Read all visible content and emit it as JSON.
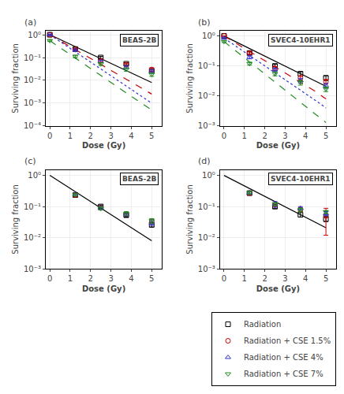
{
  "chart_data": [
    {
      "type": "scatter",
      "title": "(a)",
      "annotations": [
        "BEAS-2B"
      ],
      "xlabel": "Dose (Gy)",
      "ylabel": "Surviving fraction",
      "xlim": [
        -0.2,
        5.5
      ],
      "xticks": [
        0,
        1,
        2,
        3,
        4,
        5
      ],
      "log": "y",
      "ylim": [
        0.0001,
        1.5
      ],
      "yticks": [
        {
          "value": 0.0001,
          "label": "10⁻⁴"
        },
        {
          "value": 0.001,
          "label": "10⁻³"
        },
        {
          "value": 0.01,
          "label": "10⁻²"
        },
        {
          "value": 0.1,
          "label": "10⁻¹"
        },
        {
          "value": 1,
          "label": "10⁰"
        }
      ],
      "grid": true,
      "legend": "lower right",
      "series": [
        {
          "type": "line",
          "color": "black",
          "line_style": "solid",
          "x": [
            0,
            0.5,
            1.0,
            1.5,
            2.0,
            2.5,
            3.0,
            3.5,
            4.0,
            4.5,
            5.0
          ],
          "values": [
            1.0,
            0.62,
            0.384,
            0.238,
            0.147,
            0.091,
            0.056,
            0.035,
            0.022,
            0.013,
            0.008
          ]
        },
        {
          "type": "line",
          "color": "#cc0000",
          "line_style": "dashed",
          "x": [
            0,
            0.5,
            1.0,
            1.5,
            2.0,
            2.5,
            3.0,
            3.5,
            4.0,
            4.5,
            5.0
          ],
          "values": [
            1.0,
            0.55,
            0.3,
            0.165,
            0.091,
            0.05,
            0.027,
            0.015,
            0.0083,
            0.0046,
            0.0025
          ]
        },
        {
          "type": "line",
          "color": "#3333cc",
          "line_style": "dotted",
          "x": [
            0,
            0.5,
            1.0,
            1.5,
            2.0,
            2.5,
            3.0,
            3.5,
            4.0,
            4.5,
            5.0
          ],
          "values": [
            1.0,
            0.5,
            0.25,
            0.125,
            0.063,
            0.031,
            0.016,
            0.008,
            0.004,
            0.002,
            0.001
          ]
        },
        {
          "type": "line",
          "color": "#228B22",
          "line_style": "dashed",
          "x": [
            0,
            0.5,
            1.0,
            1.5,
            2.0,
            2.5,
            3.0,
            3.5,
            4.0,
            4.5,
            5.0
          ],
          "values": [
            0.55,
            0.27,
            0.134,
            0.066,
            0.033,
            0.016,
            0.008,
            0.004,
            0.002,
            0.001,
            0.0005
          ]
        },
        {
          "type": "scatter",
          "name": "Radiation",
          "color": "black",
          "marker": "square",
          "x": [
            0,
            1.25,
            2.5,
            3.75,
            5.0
          ],
          "values": [
            1.0,
            0.235,
            0.1,
            0.053,
            0.026
          ],
          "errors": [
            0.0,
            0.022,
            0.012,
            0.007,
            0.004
          ]
        },
        {
          "type": "scatter",
          "name": "Radiation + CSE 1.5%",
          "color": "#cc0000",
          "marker": "circle",
          "x": [
            0,
            1.25,
            2.5,
            3.75,
            5.0
          ],
          "values": [
            1.0,
            0.225,
            0.072,
            0.048,
            0.03
          ],
          "errors": [
            0.0,
            0.02,
            0.009,
            0.006,
            0.005
          ]
        },
        {
          "type": "scatter",
          "name": "Radiation + CSE 4%",
          "color": "#3333cc",
          "marker": "triangle-up",
          "x": [
            0,
            1.25,
            2.5,
            3.75,
            5.0
          ],
          "values": [
            1.0,
            0.21,
            0.068,
            0.038,
            0.025
          ],
          "errors": [
            0.0,
            0.018,
            0.009,
            0.005,
            0.004
          ]
        },
        {
          "type": "scatter",
          "name": "Radiation + CSE 7%",
          "color": "#228B22",
          "marker": "triangle-down",
          "x": [
            0,
            1.25,
            2.5,
            3.75,
            5.0
          ],
          "values": [
            0.55,
            0.112,
            0.052,
            0.03,
            0.018
          ],
          "errors": [
            0.04,
            0.014,
            0.007,
            0.005,
            0.003
          ]
        }
      ]
    },
    {
      "type": "scatter",
      "title": "(b)",
      "annotations": [
        "SVEC4-10EHR1"
      ],
      "xlabel": "Dose (Gy)",
      "ylabel": "Surviving fraction",
      "xlim": [
        -0.2,
        5.5
      ],
      "xticks": [
        0,
        1,
        2,
        3,
        4,
        5
      ],
      "log": "y",
      "ylim": [
        0.001,
        1.5
      ],
      "yticks": [
        {
          "value": 0.001,
          "label": "10⁻³"
        },
        {
          "value": 0.01,
          "label": "10⁻²"
        },
        {
          "value": 0.1,
          "label": "10⁻¹"
        },
        {
          "value": 1,
          "label": "10⁰"
        }
      ],
      "grid": true,
      "legend": "lower right",
      "series": [
        {
          "type": "line",
          "color": "black",
          "line_style": "solid",
          "x": [
            0,
            0.5,
            1.0,
            1.5,
            2.0,
            2.5,
            3.0,
            3.5,
            4.0,
            4.5,
            5.0
          ],
          "values": [
            1.0,
            0.68,
            0.462,
            0.314,
            0.213,
            0.145,
            0.098,
            0.067,
            0.046,
            0.031,
            0.021
          ]
        },
        {
          "type": "line",
          "color": "#cc0000",
          "line_style": "dashed",
          "x": [
            0,
            0.5,
            1.0,
            1.5,
            2.0,
            2.5,
            3.0,
            3.5,
            4.0,
            4.5,
            5.0
          ],
          "values": [
            1.0,
            0.62,
            0.385,
            0.239,
            0.148,
            0.092,
            0.057,
            0.035,
            0.022,
            0.014,
            0.008
          ]
        },
        {
          "type": "line",
          "color": "#3333cc",
          "line_style": "dotted",
          "x": [
            0,
            0.5,
            1.0,
            1.5,
            2.0,
            2.5,
            3.0,
            3.5,
            4.0,
            4.5,
            5.0
          ],
          "values": [
            0.85,
            0.5,
            0.295,
            0.174,
            0.102,
            0.06,
            0.036,
            0.021,
            0.012,
            0.007,
            0.004
          ]
        },
        {
          "type": "line",
          "color": "#228B22",
          "line_style": "dashed",
          "x": [
            0,
            0.5,
            1.0,
            1.5,
            2.0,
            2.5,
            3.0,
            3.5,
            4.0,
            4.5,
            5.0
          ],
          "values": [
            0.65,
            0.35,
            0.188,
            0.101,
            0.054,
            0.029,
            0.016,
            0.0085,
            0.0046,
            0.0025,
            0.0013
          ]
        },
        {
          "type": "scatter",
          "name": "Radiation",
          "color": "black",
          "marker": "square",
          "x": [
            0,
            1.25,
            2.5,
            3.75,
            5.0
          ],
          "values": [
            1.0,
            0.27,
            0.1,
            0.055,
            0.04
          ],
          "errors": [
            0.0,
            0.028,
            0.014,
            0.009,
            0.007
          ]
        },
        {
          "type": "scatter",
          "name": "Radiation + CSE 1.5%",
          "color": "#cc0000",
          "marker": "circle",
          "x": [
            0,
            1.25,
            2.5,
            3.75,
            5.0
          ],
          "values": [
            1.0,
            0.27,
            0.083,
            0.04,
            0.03
          ],
          "errors": [
            0.0,
            0.025,
            0.011,
            0.007,
            0.005
          ]
        },
        {
          "type": "scatter",
          "name": "Radiation + CSE 4%",
          "color": "#3333cc",
          "marker": "triangle-up",
          "x": [
            0,
            1.25,
            2.5,
            3.75,
            5.0
          ],
          "values": [
            0.85,
            0.195,
            0.075,
            0.033,
            0.022
          ],
          "errors": [
            0.04,
            0.022,
            0.01,
            0.006,
            0.004
          ]
        },
        {
          "type": "scatter",
          "name": "Radiation + CSE 7%",
          "color": "#228B22",
          "marker": "triangle-down",
          "x": [
            0,
            1.25,
            2.5,
            3.75,
            5.0
          ],
          "values": [
            0.65,
            0.12,
            0.055,
            0.028,
            0.017
          ],
          "errors": [
            0.04,
            0.013,
            0.008,
            0.005,
            0.003
          ]
        }
      ]
    },
    {
      "type": "scatter",
      "title": "(c)",
      "annotations": [
        "BEAS-2B"
      ],
      "xlabel": "Dose (Gy)",
      "ylabel": "Surviving fraction",
      "xlim": [
        -0.2,
        5.5
      ],
      "xticks": [
        0,
        1,
        2,
        3,
        4,
        5
      ],
      "log": "y",
      "ylim": [
        0.001,
        1.5
      ],
      "yticks": [
        {
          "value": 0.001,
          "label": "10⁻³"
        },
        {
          "value": 0.01,
          "label": "10⁻²"
        },
        {
          "value": 0.1,
          "label": "10⁻¹"
        },
        {
          "value": 1,
          "label": "10⁰"
        }
      ],
      "grid": true,
      "legend": "lower right",
      "series": [
        {
          "type": "line",
          "color": "black",
          "line_style": "solid",
          "x": [
            0,
            0.5,
            1.0,
            1.5,
            2.0,
            2.5,
            3.0,
            3.5,
            4.0,
            4.5,
            5.0
          ],
          "values": [
            1.0,
            0.62,
            0.384,
            0.238,
            0.147,
            0.091,
            0.056,
            0.035,
            0.022,
            0.013,
            0.008
          ]
        },
        {
          "type": "scatter",
          "name": "Radiation",
          "color": "black",
          "marker": "square",
          "x": [
            1.25,
            2.5,
            3.75,
            5.0
          ],
          "values": [
            0.235,
            0.1,
            0.053,
            0.026
          ],
          "errors": [
            0.022,
            0.012,
            0.007,
            0.004
          ]
        },
        {
          "type": "scatter",
          "name": "Radiation + CSE 1.5%",
          "color": "#cc0000",
          "marker": "circle",
          "x": [
            1.25,
            2.5,
            3.75,
            5.0
          ],
          "values": [
            0.235,
            0.09,
            0.058,
            0.033
          ],
          "errors": [
            0.02,
            0.01,
            0.008,
            0.006
          ]
        },
        {
          "type": "scatter",
          "name": "Radiation + CSE 4%",
          "color": "#3333cc",
          "marker": "triangle-up",
          "x": [
            1.25,
            2.5,
            3.75,
            5.0
          ],
          "values": [
            0.245,
            0.09,
            0.057,
            0.03
          ],
          "errors": [
            0.018,
            0.01,
            0.007,
            0.005
          ]
        },
        {
          "type": "scatter",
          "name": "Radiation + CSE 7%",
          "color": "#228B22",
          "marker": "triangle-down",
          "x": [
            1.25,
            2.5,
            3.75,
            5.0
          ],
          "values": [
            0.24,
            0.088,
            0.06,
            0.035
          ],
          "errors": [
            0.018,
            0.01,
            0.009,
            0.006
          ]
        }
      ]
    },
    {
      "type": "scatter",
      "title": "(d)",
      "annotations": [
        "SVEC4-10EHR1"
      ],
      "xlabel": "Dose (Gy)",
      "ylabel": "Surviving fraction",
      "xlim": [
        -0.2,
        5.5
      ],
      "xticks": [
        0,
        1,
        2,
        3,
        4,
        5
      ],
      "log": "y",
      "ylim": [
        0.001,
        1.5
      ],
      "yticks": [
        {
          "value": 0.001,
          "label": "10⁻³"
        },
        {
          "value": 0.01,
          "label": "10⁻²"
        },
        {
          "value": 0.1,
          "label": "10⁻¹"
        },
        {
          "value": 1,
          "label": "10⁰"
        }
      ],
      "grid": true,
      "legend": "lower right",
      "series": [
        {
          "type": "line",
          "color": "black",
          "line_style": "solid",
          "x": [
            0,
            0.5,
            1.0,
            1.5,
            2.0,
            2.5,
            3.0,
            3.5,
            4.0,
            4.5,
            5.0
          ],
          "values": [
            1.0,
            0.68,
            0.462,
            0.314,
            0.213,
            0.145,
            0.098,
            0.067,
            0.046,
            0.031,
            0.021
          ]
        },
        {
          "type": "scatter",
          "name": "Radiation",
          "color": "black",
          "marker": "square",
          "x": [
            1.25,
            2.5,
            3.75,
            5.0
          ],
          "values": [
            0.27,
            0.1,
            0.055,
            0.04
          ],
          "errors": [
            0.028,
            0.014,
            0.009,
            0.007
          ]
        },
        {
          "type": "scatter",
          "name": "Radiation + CSE 1.5%",
          "color": "#cc0000",
          "marker": "circle",
          "x": [
            1.25,
            2.5,
            3.75,
            5.0
          ],
          "values": [
            0.27,
            0.115,
            0.08,
            0.05
          ],
          "errors": [
            0.025,
            0.013,
            0.011,
            0.038
          ]
        },
        {
          "type": "scatter",
          "name": "Radiation + CSE 4%",
          "color": "#3333cc",
          "marker": "triangle-up",
          "x": [
            1.25,
            2.5,
            3.75,
            5.0
          ],
          "values": [
            0.275,
            0.12,
            0.088,
            0.06
          ],
          "errors": [
            0.025,
            0.025,
            0.011,
            0.009
          ]
        },
        {
          "type": "scatter",
          "name": "Radiation + CSE 7%",
          "color": "#228B22",
          "marker": "triangle-down",
          "x": [
            1.25,
            2.5,
            3.75,
            5.0
          ],
          "values": [
            0.28,
            0.12,
            0.078,
            0.067
          ],
          "errors": [
            0.025,
            0.013,
            0.011,
            0.008
          ]
        }
      ]
    }
  ]
}
